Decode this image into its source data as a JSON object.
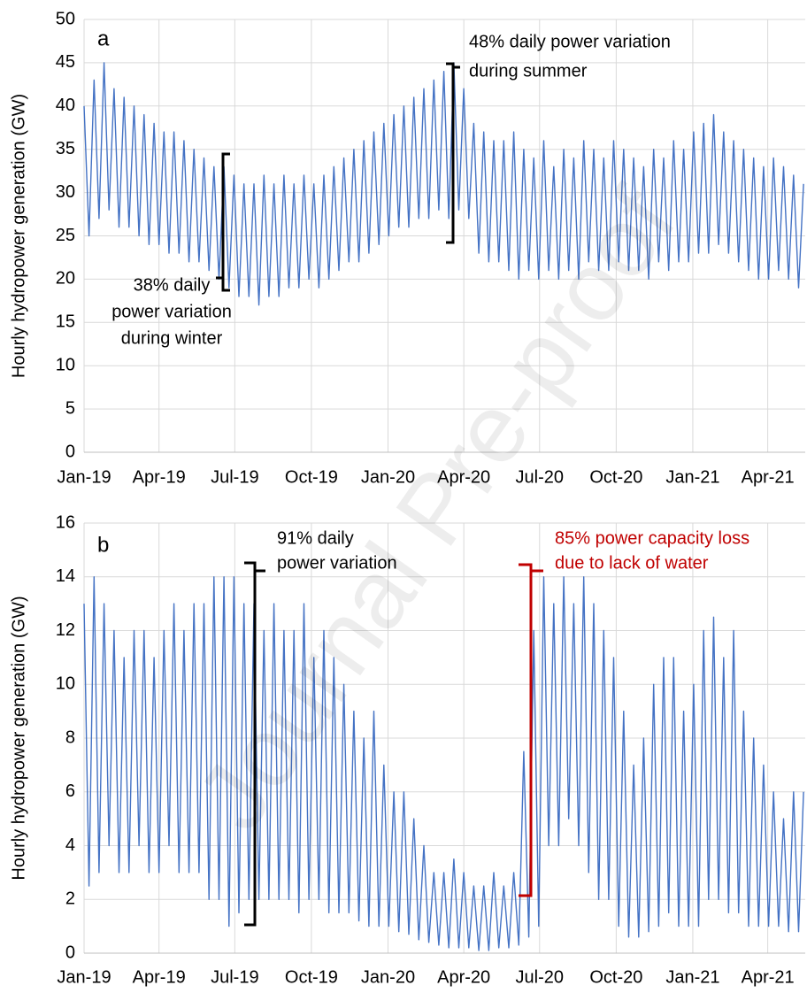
{
  "watermark": "Journal Pre-proof",
  "chart_data": [
    {
      "type": "line",
      "panel_label": "a",
      "y_label": "Hourly hydropower generation (GW)",
      "x": [
        0,
        6,
        12,
        18,
        24,
        30,
        36,
        42,
        48,
        54,
        60,
        66,
        72,
        78,
        84,
        90,
        96,
        102,
        108,
        114,
        120,
        126,
        132,
        138,
        144,
        150,
        156,
        162,
        168,
        174,
        180,
        186,
        192,
        198,
        204,
        210,
        216,
        222,
        228,
        234,
        240,
        246,
        252,
        258,
        264,
        270,
        276,
        282,
        288,
        294,
        300,
        306,
        312,
        318,
        324,
        330,
        336,
        342,
        348,
        354,
        360,
        366,
        372,
        378,
        384,
        390,
        396,
        402,
        408,
        414,
        420,
        426,
        432,
        438,
        444,
        450,
        456,
        462,
        468,
        474,
        480,
        486,
        492,
        498,
        504,
        510,
        516,
        522,
        528,
        534,
        540,
        546,
        552,
        558,
        564,
        570,
        576,
        582,
        588,
        594,
        600,
        606,
        612,
        618,
        624,
        630,
        636,
        642,
        648,
        654,
        660,
        666,
        672,
        678,
        684,
        690,
        696,
        702,
        708,
        714,
        720,
        726,
        732,
        738,
        744,
        750,
        756,
        762,
        768,
        774,
        780,
        786,
        792,
        798,
        804,
        810,
        816,
        822,
        828,
        834,
        840,
        846,
        852,
        858,
        864
      ],
      "color": "#4472c4",
      "values": [
        40,
        25,
        43,
        27,
        45,
        28,
        42,
        26,
        41,
        26,
        40,
        25,
        39,
        24,
        38,
        24,
        37,
        23,
        37,
        23,
        36,
        22,
        35,
        22,
        34,
        21,
        33,
        20,
        33,
        19,
        32,
        18,
        31,
        18,
        31,
        17,
        32,
        18,
        31,
        18,
        32,
        19,
        31,
        19,
        32,
        20,
        31,
        19,
        32,
        20,
        33,
        21,
        34,
        22,
        35,
        22,
        36,
        23,
        37,
        24,
        38,
        25,
        39,
        26,
        40,
        26,
        41,
        27,
        42,
        27,
        43,
        28,
        44,
        27,
        45,
        28,
        42,
        27,
        38,
        23,
        37,
        22,
        36,
        22,
        36,
        21,
        37,
        20,
        35,
        21,
        34,
        20,
        36,
        21,
        33,
        20,
        35,
        21,
        34,
        20,
        36,
        22,
        35,
        21,
        34,
        21,
        36,
        22,
        35,
        21,
        34,
        21,
        33,
        20,
        35,
        22,
        34,
        21,
        36,
        22,
        35,
        22,
        37,
        23,
        38,
        23,
        39,
        24,
        37,
        23,
        36,
        22,
        35,
        21,
        34,
        20,
        33,
        20,
        34,
        21,
        33,
        20,
        32,
        19,
        31
      ],
      "xlim": [
        0,
        866
      ],
      "ylim": [
        0,
        50
      ],
      "xticks": [
        {
          "value": 0,
          "label": "Jan-19"
        },
        {
          "value": 90,
          "label": "Apr-19"
        },
        {
          "value": 181,
          "label": "Jul-19"
        },
        {
          "value": 273,
          "label": "Oct-19"
        },
        {
          "value": 365,
          "label": "Jan-20"
        },
        {
          "value": 456,
          "label": "Apr-20"
        },
        {
          "value": 547,
          "label": "Jul-20"
        },
        {
          "value": 639,
          "label": "Oct-20"
        },
        {
          "value": 731,
          "label": "Jan-21"
        },
        {
          "value": 821,
          "label": "Apr-21"
        }
      ],
      "yticks": [
        0,
        5,
        10,
        15,
        20,
        25,
        30,
        35,
        40,
        45,
        50
      ],
      "grid": true,
      "annotations": [
        {
          "lines": [
            "48% daily power variation",
            "during summer"
          ],
          "color": "#000000"
        },
        {
          "lines": [
            "38% daily",
            "power variation",
            "during winter"
          ],
          "color": "#000000"
        }
      ]
    },
    {
      "type": "line",
      "panel_label": "b",
      "y_label": "Hourly hydropower generation (GW)",
      "x": [
        0,
        6,
        12,
        18,
        24,
        30,
        36,
        42,
        48,
        54,
        60,
        66,
        72,
        78,
        84,
        90,
        96,
        102,
        108,
        114,
        120,
        126,
        132,
        138,
        144,
        150,
        156,
        162,
        168,
        174,
        180,
        186,
        192,
        198,
        204,
        210,
        216,
        222,
        228,
        234,
        240,
        246,
        252,
        258,
        264,
        270,
        276,
        282,
        288,
        294,
        300,
        306,
        312,
        318,
        324,
        330,
        336,
        342,
        348,
        354,
        360,
        366,
        372,
        378,
        384,
        390,
        396,
        402,
        408,
        414,
        420,
        426,
        432,
        438,
        444,
        450,
        456,
        462,
        468,
        474,
        480,
        486,
        492,
        498,
        504,
        510,
        516,
        522,
        528,
        534,
        540,
        546,
        552,
        558,
        564,
        570,
        576,
        582,
        588,
        594,
        600,
        606,
        612,
        618,
        624,
        630,
        636,
        642,
        648,
        654,
        660,
        666,
        672,
        678,
        684,
        690,
        696,
        702,
        708,
        714,
        720,
        726,
        732,
        738,
        744,
        750,
        756,
        762,
        768,
        774,
        780,
        786,
        792,
        798,
        804,
        810,
        816,
        822,
        828,
        834,
        840,
        846,
        852,
        858,
        864
      ],
      "color": "#4472c4",
      "values": [
        13,
        2.5,
        14,
        3,
        13,
        4,
        12,
        3,
        11,
        3,
        12,
        4,
        12,
        3,
        11,
        3,
        12,
        4,
        13,
        3,
        12,
        3,
        13,
        3,
        13,
        2,
        14,
        2,
        14,
        1,
        14,
        1.5,
        13,
        2,
        13,
        2,
        12,
        2,
        13,
        2,
        12,
        2,
        12,
        1.5,
        13,
        2,
        11,
        2,
        12,
        1.5,
        11,
        1.5,
        10,
        1.5,
        9,
        1.2,
        8,
        1,
        9,
        1,
        7,
        1,
        6,
        0.8,
        6,
        0.7,
        5,
        0.5,
        4,
        0.4,
        3,
        0.3,
        3,
        0.2,
        3.5,
        0.2,
        3,
        0.2,
        2.5,
        0.1,
        2.5,
        0.1,
        3,
        0.2,
        2.5,
        0.2,
        3,
        0.3,
        7.5,
        0.6,
        12,
        1,
        14,
        4,
        13,
        4,
        14,
        5,
        13,
        4,
        14,
        3,
        13,
        2,
        12,
        2,
        11,
        1,
        9,
        0.6,
        7,
        0.6,
        8,
        0.8,
        10,
        1,
        11,
        1.5,
        11,
        1,
        9,
        1,
        10,
        1,
        12,
        2,
        12.5,
        2,
        11,
        1.5,
        12,
        1.5,
        9,
        1,
        8,
        1,
        7,
        1,
        6,
        1,
        5,
        0.8,
        6,
        0.8,
        6
      ],
      "xlim": [
        0,
        866
      ],
      "ylim": [
        0,
        16
      ],
      "xticks": [
        {
          "value": 0,
          "label": "Jan-19"
        },
        {
          "value": 90,
          "label": "Apr-19"
        },
        {
          "value": 181,
          "label": "Jul-19"
        },
        {
          "value": 273,
          "label": "Oct-19"
        },
        {
          "value": 365,
          "label": "Jan-20"
        },
        {
          "value": 456,
          "label": "Apr-20"
        },
        {
          "value": 547,
          "label": "Jul-20"
        },
        {
          "value": 639,
          "label": "Oct-20"
        },
        {
          "value": 731,
          "label": "Jan-21"
        },
        {
          "value": 821,
          "label": "Apr-21"
        }
      ],
      "yticks": [
        0,
        2,
        4,
        6,
        8,
        10,
        12,
        14,
        16
      ],
      "grid": true,
      "annotations": [
        {
          "lines": [
            "91% daily",
            "power variation"
          ],
          "color": "#000000"
        },
        {
          "lines": [
            "85% power capacity loss",
            "due to lack of water"
          ],
          "color": "#c00000"
        }
      ]
    }
  ]
}
